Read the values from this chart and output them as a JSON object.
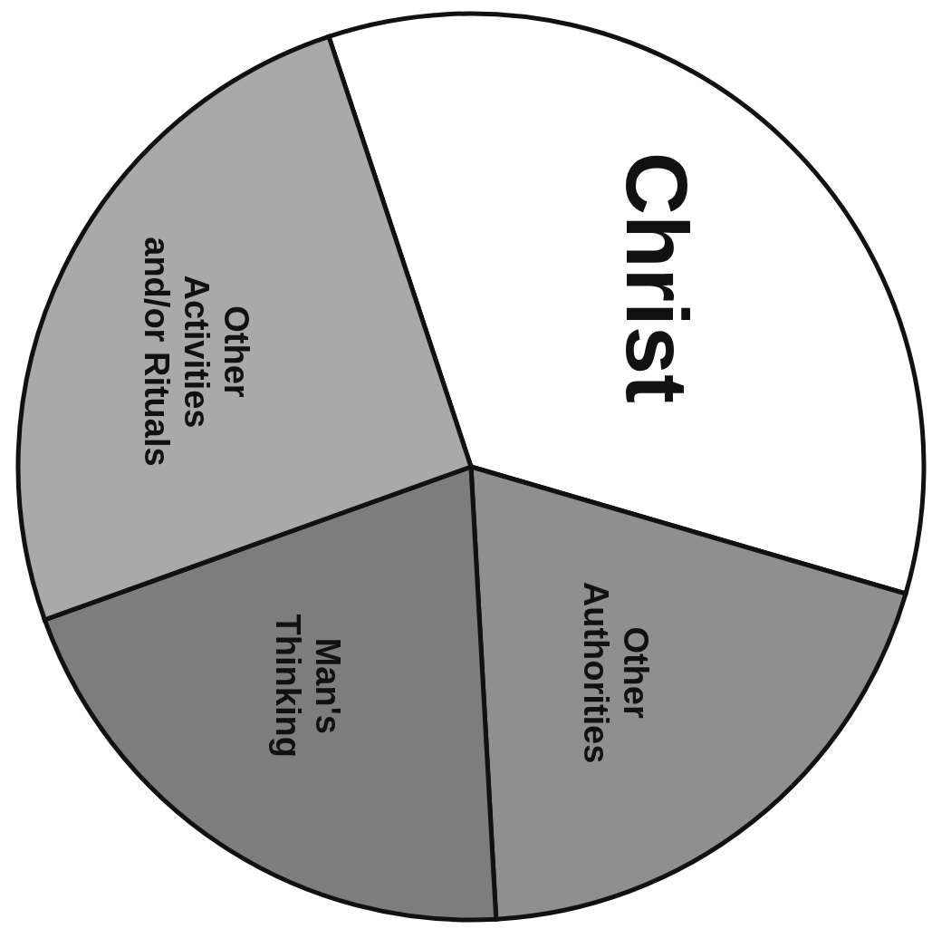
{
  "chart_data": {
    "type": "pie",
    "categories": [
      "Christ",
      "Other\nAuthorities",
      "Man's\nThinking",
      "Other\nActivities\nand/or Rituals"
    ],
    "values": [
      34.6,
      19.6,
      20.4,
      25.4
    ],
    "colors": [
      "#ffffff",
      "#8f8f8f",
      "#7d7d7d",
      "#a9a9a9"
    ]
  }
}
